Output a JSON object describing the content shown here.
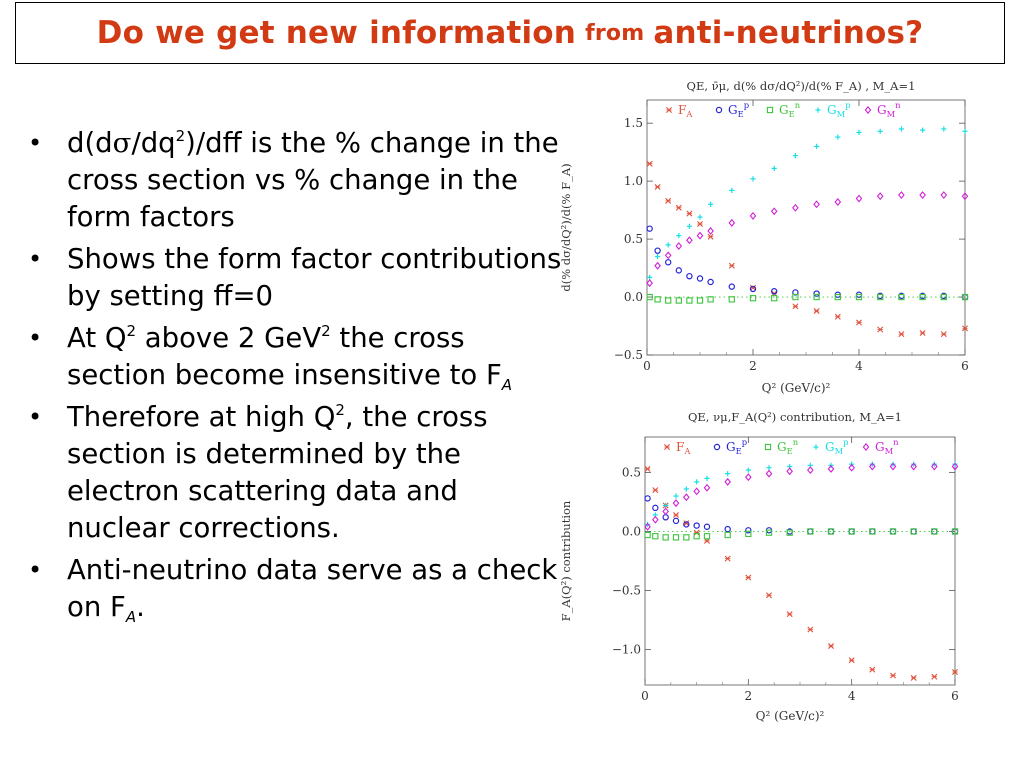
{
  "slide": {
    "title_part1": "Do we get new information",
    "title_part2": "from",
    "title_part3": "anti-neutrinos?"
  },
  "bullets": {
    "b1": {
      "a": "d(d",
      "sigma": "σ",
      "b": "/dq",
      "sup": "2",
      "c": ")/dff is the % change in the cross section vs % change in the form factors"
    },
    "b2": {
      "text": "Shows the form factor contributions by setting ff=0"
    },
    "b3": {
      "a": "At Q",
      "sup1": "2",
      "b": " above 2 GeV",
      "sup2": "2",
      "c": " the cross section become insensitive to F",
      "sub": "A"
    },
    "b4": {
      "a": "Therefore at high Q",
      "sup": "2",
      "b": ", the cross section is determined by the electron scattering data and nuclear corrections."
    },
    "b5": {
      "a": "Anti-neutrino data serve as a check on F",
      "sub": "A",
      "b": "."
    }
  },
  "chart_data": [
    {
      "type": "scatter",
      "title": "QE, ν̄μ, d(% dσ/dQ²)/d(% F_A) , M_A=1",
      "xlabel": "Q² (GeV/c)²",
      "ylabel": "d(% dσ/dQ²)/d(% F_A)",
      "xlim": [
        0,
        6
      ],
      "ylim": [
        -0.5,
        1.7
      ],
      "xticks": [
        0,
        2,
        4,
        6
      ],
      "yticks": [
        -0.5,
        0.0,
        0.5,
        1.0,
        1.5
      ],
      "ytick_labels": [
        "−0.5",
        "0.0",
        "0.5",
        "1.0",
        "1.5"
      ],
      "zero_line": true,
      "legend_position": "top",
      "series": [
        {
          "name": "F_A",
          "label": "F",
          "sub": "A",
          "sup": "",
          "color": "#e0503a",
          "marker": "x",
          "x": [
            0.05,
            0.2,
            0.4,
            0.6,
            0.8,
            1.0,
            1.2,
            1.6,
            2.0,
            2.4,
            2.8,
            3.2,
            3.6,
            4.0,
            4.4,
            4.8,
            5.2,
            5.6,
            6.0
          ],
          "y": [
            1.15,
            0.95,
            0.83,
            0.77,
            0.72,
            0.63,
            0.52,
            0.27,
            0.08,
            0.03,
            -0.08,
            -0.12,
            -0.17,
            -0.22,
            -0.28,
            -0.32,
            -0.31,
            -0.32,
            -0.27
          ]
        },
        {
          "name": "G_E^p",
          "label": "G",
          "sub": "E",
          "sup": "p",
          "color": "#2525d6",
          "marker": "o",
          "x": [
            0.05,
            0.2,
            0.4,
            0.6,
            0.8,
            1.0,
            1.2,
            1.6,
            2.0,
            2.4,
            2.8,
            3.2,
            3.6,
            4.0,
            4.4,
            4.8,
            5.2,
            5.6,
            6.0
          ],
          "y": [
            0.59,
            0.4,
            0.3,
            0.23,
            0.18,
            0.16,
            0.13,
            0.09,
            0.07,
            0.05,
            0.04,
            0.03,
            0.02,
            0.02,
            0.01,
            0.01,
            0.01,
            0.01,
            0.0
          ]
        },
        {
          "name": "G_E^n",
          "label": "G",
          "sub": "E",
          "sup": "n",
          "color": "#3cc43c",
          "marker": "s",
          "x": [
            0.05,
            0.2,
            0.4,
            0.6,
            0.8,
            1.0,
            1.2,
            1.6,
            2.0,
            2.4,
            2.8,
            3.2,
            3.6,
            4.0,
            4.4,
            4.8,
            5.2,
            5.6,
            6.0
          ],
          "y": [
            0.0,
            -0.02,
            -0.03,
            -0.03,
            -0.03,
            -0.03,
            -0.02,
            -0.02,
            -0.01,
            -0.01,
            0.0,
            0.0,
            0.0,
            0.0,
            0.0,
            0.0,
            0.0,
            0.0,
            0.0
          ]
        },
        {
          "name": "G_M^p",
          "label": "G",
          "sub": "M",
          "sup": "p",
          "color": "#18dfe6",
          "marker": "+",
          "x": [
            0.05,
            0.2,
            0.4,
            0.6,
            0.8,
            1.0,
            1.2,
            1.6,
            2.0,
            2.4,
            2.8,
            3.2,
            3.6,
            4.0,
            4.4,
            4.8,
            5.2,
            5.6,
            6.0
          ],
          "y": [
            0.17,
            0.35,
            0.45,
            0.53,
            0.61,
            0.69,
            0.8,
            0.92,
            1.02,
            1.11,
            1.22,
            1.3,
            1.38,
            1.42,
            1.43,
            1.45,
            1.44,
            1.45,
            1.43
          ]
        },
        {
          "name": "G_M^n",
          "label": "G",
          "sub": "M",
          "sup": "n",
          "color": "#d021d6",
          "marker": "d",
          "x": [
            0.05,
            0.2,
            0.4,
            0.6,
            0.8,
            1.0,
            1.2,
            1.6,
            2.0,
            2.4,
            2.8,
            3.2,
            3.6,
            4.0,
            4.4,
            4.8,
            5.2,
            5.6,
            6.0
          ],
          "y": [
            0.12,
            0.27,
            0.36,
            0.44,
            0.49,
            0.53,
            0.57,
            0.64,
            0.7,
            0.74,
            0.77,
            0.8,
            0.82,
            0.85,
            0.87,
            0.88,
            0.88,
            0.88,
            0.87
          ]
        }
      ]
    },
    {
      "type": "scatter",
      "title": "QE, νμ,F_A(Q²) contribution, M_A=1",
      "xlabel": "Q² (GeV/c)²",
      "ylabel": "F_A(Q²) contribution",
      "xlim": [
        0,
        6
      ],
      "ylim": [
        -1.3,
        0.8
      ],
      "xticks": [
        0,
        2,
        4,
        6
      ],
      "yticks": [
        -1.0,
        -0.5,
        0.0,
        0.5
      ],
      "ytick_labels": [
        "−1.0",
        "−0.5",
        "0.0",
        "0.5"
      ],
      "zero_line": true,
      "legend_position": "top",
      "series": [
        {
          "name": "F_A",
          "label": "F",
          "sub": "A",
          "sup": "",
          "color": "#e0503a",
          "marker": "x",
          "x": [
            0.05,
            0.2,
            0.4,
            0.6,
            0.8,
            1.0,
            1.2,
            1.6,
            2.0,
            2.4,
            2.8,
            3.2,
            3.6,
            4.0,
            4.4,
            4.8,
            5.2,
            5.6,
            6.0
          ],
          "y": [
            0.53,
            0.35,
            0.22,
            0.14,
            0.07,
            -0.01,
            -0.08,
            -0.23,
            -0.39,
            -0.54,
            -0.7,
            -0.83,
            -0.97,
            -1.09,
            -1.17,
            -1.22,
            -1.24,
            -1.23,
            -1.19
          ]
        },
        {
          "name": "G_E^p",
          "label": "G",
          "sub": "E",
          "sup": "p",
          "color": "#2525d6",
          "marker": "o",
          "x": [
            0.05,
            0.2,
            0.4,
            0.6,
            0.8,
            1.0,
            1.2,
            1.6,
            2.0,
            2.4,
            2.8,
            3.2,
            3.6,
            4.0,
            4.4,
            4.8,
            5.2,
            5.6,
            6.0
          ],
          "y": [
            0.28,
            0.2,
            0.12,
            0.09,
            0.06,
            0.05,
            0.04,
            0.02,
            0.01,
            0.01,
            0.0,
            0.0,
            0.0,
            0.0,
            0.0,
            0.0,
            0.0,
            0.0,
            0.0
          ]
        },
        {
          "name": "G_E^n",
          "label": "G",
          "sub": "E",
          "sup": "n",
          "color": "#3cc43c",
          "marker": "s",
          "x": [
            0.05,
            0.2,
            0.4,
            0.6,
            0.8,
            1.0,
            1.2,
            1.6,
            2.0,
            2.4,
            2.8,
            3.2,
            3.6,
            4.0,
            4.4,
            4.8,
            5.2,
            5.6,
            6.0
          ],
          "y": [
            -0.03,
            -0.04,
            -0.05,
            -0.05,
            -0.05,
            -0.04,
            -0.04,
            -0.03,
            -0.02,
            -0.01,
            -0.01,
            0.0,
            0.0,
            0.0,
            0.0,
            0.0,
            0.0,
            0.0,
            0.0
          ]
        },
        {
          "name": "G_M^p",
          "label": "G",
          "sub": "M",
          "sup": "p",
          "color": "#18dfe6",
          "marker": "+",
          "x": [
            0.05,
            0.2,
            0.4,
            0.6,
            0.8,
            1.0,
            1.2,
            1.6,
            2.0,
            2.4,
            2.8,
            3.2,
            3.6,
            4.0,
            4.4,
            4.8,
            5.2,
            5.6,
            6.0
          ],
          "y": [
            0.06,
            0.14,
            0.22,
            0.3,
            0.36,
            0.42,
            0.45,
            0.49,
            0.52,
            0.54,
            0.55,
            0.56,
            0.56,
            0.57,
            0.57,
            0.57,
            0.57,
            0.57,
            0.57
          ]
        },
        {
          "name": "G_M^n",
          "label": "G",
          "sub": "M",
          "sup": "n",
          "color": "#d021d6",
          "marker": "d",
          "x": [
            0.05,
            0.2,
            0.4,
            0.6,
            0.8,
            1.0,
            1.2,
            1.6,
            2.0,
            2.4,
            2.8,
            3.2,
            3.6,
            4.0,
            4.4,
            4.8,
            5.2,
            5.6,
            6.0
          ],
          "y": [
            0.04,
            0.1,
            0.17,
            0.24,
            0.29,
            0.34,
            0.37,
            0.42,
            0.46,
            0.49,
            0.51,
            0.52,
            0.53,
            0.54,
            0.55,
            0.55,
            0.55,
            0.55,
            0.55
          ]
        }
      ]
    }
  ]
}
